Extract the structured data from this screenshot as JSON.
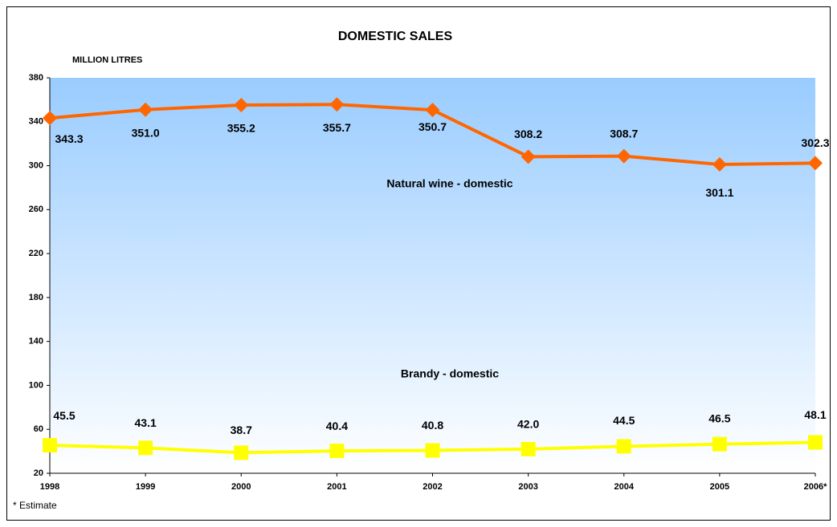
{
  "chart_data": {
    "type": "line",
    "title": "DOMESTIC SALES",
    "y_axis_label": "MILLION LITRES",
    "footnote": "* Estimate",
    "categories": [
      "1998",
      "1999",
      "2000",
      "2001",
      "2002",
      "2003",
      "2004",
      "2005",
      "2006*"
    ],
    "series": [
      {
        "name": "Natural wine - domestic",
        "color": "#ff6600",
        "marker": "diamond",
        "values": [
          343.3,
          351.0,
          355.2,
          355.7,
          350.7,
          308.2,
          308.7,
          301.1,
          302.3
        ],
        "value_labels": [
          "343.3",
          "351.0",
          "355.2",
          "355.7",
          "350.7",
          "308.2",
          "308.7",
          "301.1",
          "302.3"
        ]
      },
      {
        "name": "Brandy - domestic",
        "color": "#ffff00",
        "marker": "square",
        "values": [
          45.5,
          43.1,
          38.7,
          40.4,
          40.8,
          42.0,
          44.5,
          46.5,
          48.1
        ],
        "value_labels": [
          "45.5",
          "43.1",
          "38.7",
          "40.4",
          "40.8",
          "42.0",
          "44.5",
          "46.5",
          "48.1"
        ]
      }
    ],
    "ylim": [
      20,
      380
    ],
    "yticks": [
      20,
      60,
      100,
      140,
      180,
      220,
      260,
      300,
      340,
      380
    ]
  }
}
